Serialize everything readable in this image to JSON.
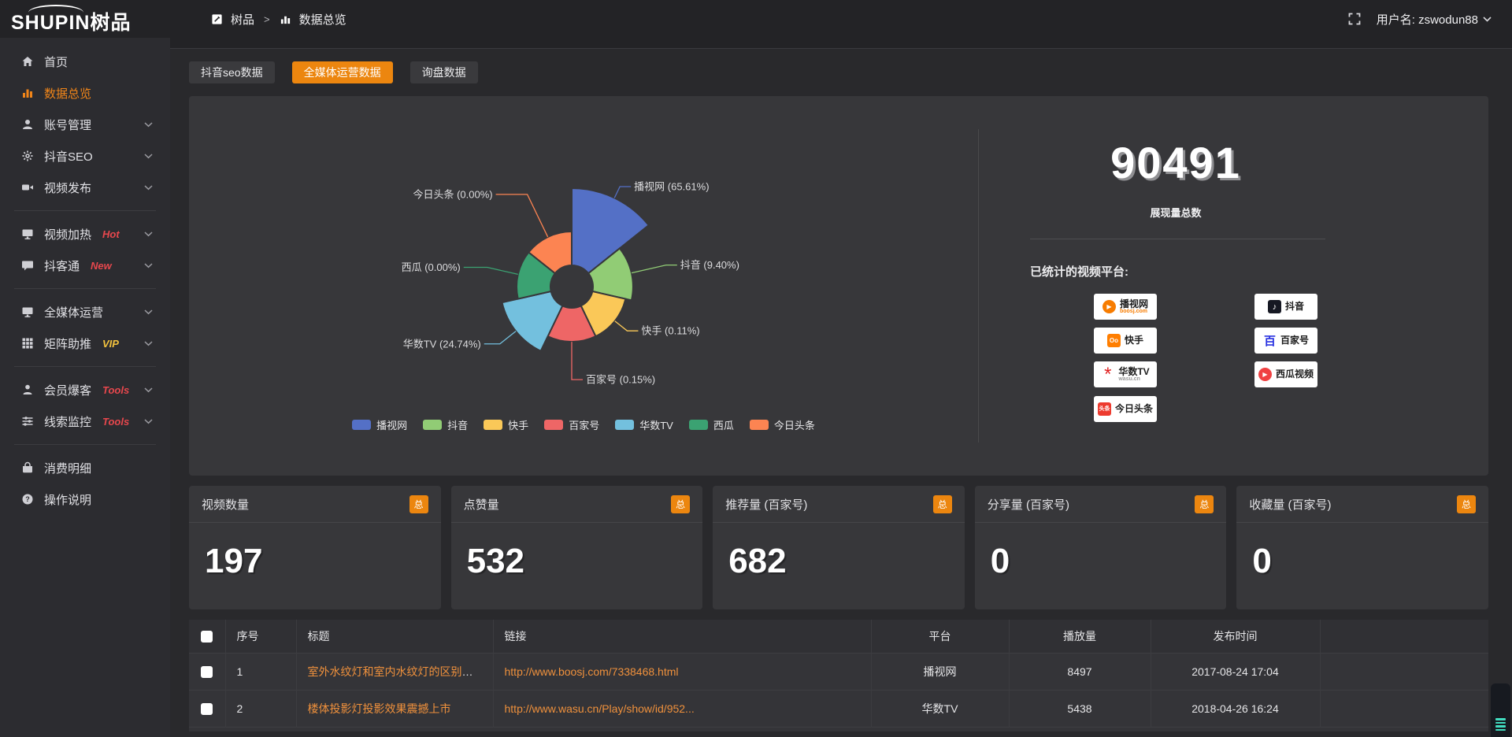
{
  "topbar": {
    "logo": "SHUPIN树品",
    "breadcrumb": {
      "root": "树品",
      "separator": ">",
      "current": "数据总览"
    },
    "username": "用户名: zswodun88"
  },
  "sidebar": {
    "items": [
      {
        "key": "home",
        "icon": "home-icon",
        "label": "首页"
      },
      {
        "key": "data-overview",
        "icon": "bar-chart-icon",
        "label": "数据总览",
        "active": true
      },
      {
        "key": "account-manage",
        "icon": "user-icon",
        "label": "账号管理",
        "chevron": true
      },
      {
        "key": "douyin-seo",
        "icon": "gear-icon",
        "label": "抖音SEO",
        "chevron": true
      },
      {
        "key": "video-publish",
        "icon": "video-icon",
        "label": "视频发布",
        "chevron": true,
        "divider_after": true
      },
      {
        "key": "video-heat",
        "icon": "screen-icon",
        "label": "视频加热",
        "badge": "Hot",
        "badge_color": "#e7474d",
        "chevron": true
      },
      {
        "key": "douketong",
        "icon": "chat-icon",
        "label": "抖客通",
        "badge": "New",
        "badge_color": "#e7474d",
        "chevron": true,
        "divider_after": true
      },
      {
        "key": "omni-media",
        "icon": "monitor-icon",
        "label": "全媒体运营",
        "chevron": true
      },
      {
        "key": "matrix-boost",
        "icon": "grid-icon",
        "label": "矩阵助推",
        "badge": "VIP",
        "badge_color": "#f2c23e",
        "chevron": true,
        "divider_after": true
      },
      {
        "key": "member-baoke",
        "icon": "person-icon",
        "label": "会员爆客",
        "badge": "Tools",
        "badge_color": "#e7474d",
        "chevron": true
      },
      {
        "key": "clue-monitor",
        "icon": "sliders-icon",
        "label": "线索监控",
        "badge": "Tools",
        "badge_color": "#e7474d",
        "chevron": true,
        "divider_after": true
      },
      {
        "key": "expense-detail",
        "icon": "expense-icon",
        "label": "消费明细"
      },
      {
        "key": "instructions",
        "icon": "help-icon",
        "label": "操作说明"
      }
    ]
  },
  "tabs": [
    {
      "label": "抖音seo数据",
      "active": false
    },
    {
      "label": "全媒体运营数据",
      "active": true
    },
    {
      "label": "询盘数据",
      "active": false
    }
  ],
  "chart_data": {
    "type": "pie",
    "rose": true,
    "labels": [
      "播视网",
      "抖音",
      "快手",
      "百家号",
      "华数TV",
      "西瓜",
      "今日头条"
    ],
    "values": [
      65.61,
      9.4,
      0.11,
      0.15,
      24.74,
      0.0,
      0.0
    ],
    "colors": [
      "#5470c6",
      "#91cc75",
      "#fac858",
      "#ee6666",
      "#73c0de",
      "#3ba272",
      "#fc8452"
    ],
    "label_format": "{name} ({value}%)",
    "legend_position": "bottom"
  },
  "summary": {
    "total_value": "90491",
    "total_label": "展现量总数",
    "platforms_label": "已统计的视频平台:",
    "platforms": [
      {
        "logo": "boosj",
        "name": "播视网",
        "sub": "boosj.com"
      },
      {
        "logo": "douyin",
        "name": "抖音",
        "sub": ""
      },
      {
        "logo": "kuaishou",
        "name": "快手",
        "sub": ""
      },
      {
        "logo": "baijiahao",
        "name": "百家号",
        "sub": ""
      },
      {
        "logo": "wasu",
        "name": "华数TV",
        "sub": "wasu.cn"
      },
      {
        "logo": "xigua",
        "name": "西瓜视频",
        "sub": ""
      },
      {
        "logo": "toutiao",
        "name": "今日头条",
        "sub": ""
      }
    ]
  },
  "stats": [
    {
      "label": "视频数量",
      "badge": "总",
      "value": "197"
    },
    {
      "label": "点赞量",
      "badge": "总",
      "value": "532"
    },
    {
      "label": "推荐量 (百家号)",
      "badge": "总",
      "value": "682"
    },
    {
      "label": "分享量 (百家号)",
      "badge": "总",
      "value": "0"
    },
    {
      "label": "收藏量 (百家号)",
      "badge": "总",
      "value": "0"
    }
  ],
  "table": {
    "headers": [
      "序号",
      "标题",
      "链接",
      "平台",
      "播放量",
      "发布时间"
    ],
    "rows": [
      {
        "num": "1",
        "title": "室外水纹灯和室内水纹灯的区别和简介",
        "link": "http://www.boosj.com/7338468.html",
        "platform": "播视网",
        "plays": "8497",
        "time": "2017-08-24 17:04"
      },
      {
        "num": "2",
        "title": "楼体投影灯投影效果震撼上市",
        "link": "http://www.wasu.cn/Play/show/id/952...",
        "platform": "华数TV",
        "plays": "5438",
        "time": "2018-04-26 16:24"
      }
    ]
  }
}
